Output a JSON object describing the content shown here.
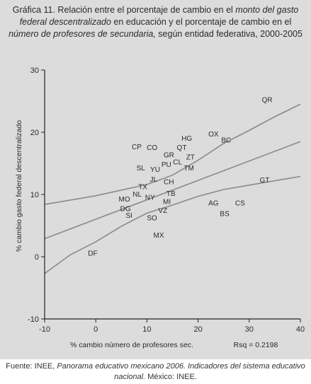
{
  "chart_title": {
    "p1": "Gráfica 11. Relación entre el porcentaje de cambio en el ",
    "p2": "monto del gasto federal descentralizado",
    "p3": " en educación y el porcentaje de cambio en el ",
    "p4": "número de profesores de secundaria,",
    "p5": " según entidad federativa, 2000-2005"
  },
  "source": {
    "p1": "Fuente: INEE, ",
    "p2": "Panorama educativo mexicano 2006. Indicadores del sistema educativo nacional.",
    "p3": " México: INEE."
  },
  "colors": {
    "background": "#dcdcdc",
    "line": "#8a8a8a",
    "text": "#2a2a2a",
    "axis": "#222222"
  },
  "chart_data": {
    "type": "scatter",
    "xlabel": "% cambio número de profesores sec.",
    "ylabel": "% cambio gasto federal descentralizado",
    "annotation": "Rsq = 0.2198",
    "xlim": [
      -10,
      40
    ],
    "ylim": [
      -10,
      30
    ],
    "xticks": [
      -10,
      0,
      10,
      20,
      30,
      40
    ],
    "yticks": [
      -10,
      0,
      10,
      20,
      30
    ],
    "grid": false,
    "points": [
      {
        "label": "QR",
        "x": 33.5,
        "y": 25.3
      },
      {
        "label": "OX",
        "x": 23.0,
        "y": 19.8
      },
      {
        "label": "BC",
        "x": 25.5,
        "y": 18.8
      },
      {
        "label": "HG",
        "x": 17.8,
        "y": 19.1
      },
      {
        "label": "CP",
        "x": 8.0,
        "y": 17.7
      },
      {
        "label": "CO",
        "x": 11.0,
        "y": 17.6
      },
      {
        "label": "QT",
        "x": 16.8,
        "y": 17.6
      },
      {
        "label": "GR",
        "x": 14.3,
        "y": 16.4
      },
      {
        "label": "ZT",
        "x": 18.5,
        "y": 16.1
      },
      {
        "label": "CL",
        "x": 16.0,
        "y": 15.3
      },
      {
        "label": "PU",
        "x": 13.8,
        "y": 14.9
      },
      {
        "label": "SL",
        "x": 8.8,
        "y": 14.3
      },
      {
        "label": "YU",
        "x": 11.6,
        "y": 14.1
      },
      {
        "label": "TM",
        "x": 18.2,
        "y": 14.3
      },
      {
        "label": "JL",
        "x": 11.3,
        "y": 12.5
      },
      {
        "label": "CH",
        "x": 14.3,
        "y": 12.1
      },
      {
        "label": "TX",
        "x": 9.2,
        "y": 11.3
      },
      {
        "label": "NL",
        "x": 8.1,
        "y": 10.1
      },
      {
        "label": "TB",
        "x": 14.7,
        "y": 10.2
      },
      {
        "label": "NY",
        "x": 10.6,
        "y": 9.6
      },
      {
        "label": "MO",
        "x": 5.6,
        "y": 9.3
      },
      {
        "label": "MI",
        "x": 13.9,
        "y": 8.9
      },
      {
        "label": "DG",
        "x": 5.8,
        "y": 7.8
      },
      {
        "label": "VZ",
        "x": 13.1,
        "y": 7.5
      },
      {
        "label": "SI",
        "x": 6.5,
        "y": 6.7
      },
      {
        "label": "SO",
        "x": 11.0,
        "y": 6.3
      },
      {
        "label": "AG",
        "x": 23.0,
        "y": 8.7
      },
      {
        "label": "CS",
        "x": 28.2,
        "y": 8.7
      },
      {
        "label": "BS",
        "x": 25.2,
        "y": 7.0
      },
      {
        "label": "GT",
        "x": 33.0,
        "y": 12.4
      },
      {
        "label": "MX",
        "x": 12.3,
        "y": 3.5
      },
      {
        "label": "DF",
        "x": -0.6,
        "y": 0.6
      }
    ],
    "fit_line": [
      [
        -10,
        2.9
      ],
      [
        40,
        18.5
      ]
    ],
    "upper_band": [
      [
        -10,
        8.4
      ],
      [
        0,
        9.8
      ],
      [
        10,
        11.6
      ],
      [
        15,
        13.1
      ],
      [
        20,
        15.5
      ],
      [
        25,
        18.2
      ],
      [
        30,
        20.3
      ],
      [
        35,
        22.5
      ],
      [
        40,
        24.5
      ]
    ],
    "lower_band": [
      [
        -10,
        -2.7
      ],
      [
        -5,
        0.3
      ],
      [
        0,
        2.4
      ],
      [
        5,
        4.9
      ],
      [
        10,
        7.0
      ],
      [
        15,
        8.3
      ],
      [
        20,
        9.7
      ],
      [
        25,
        10.8
      ],
      [
        30,
        11.5
      ],
      [
        35,
        12.2
      ],
      [
        40,
        12.9
      ]
    ]
  }
}
